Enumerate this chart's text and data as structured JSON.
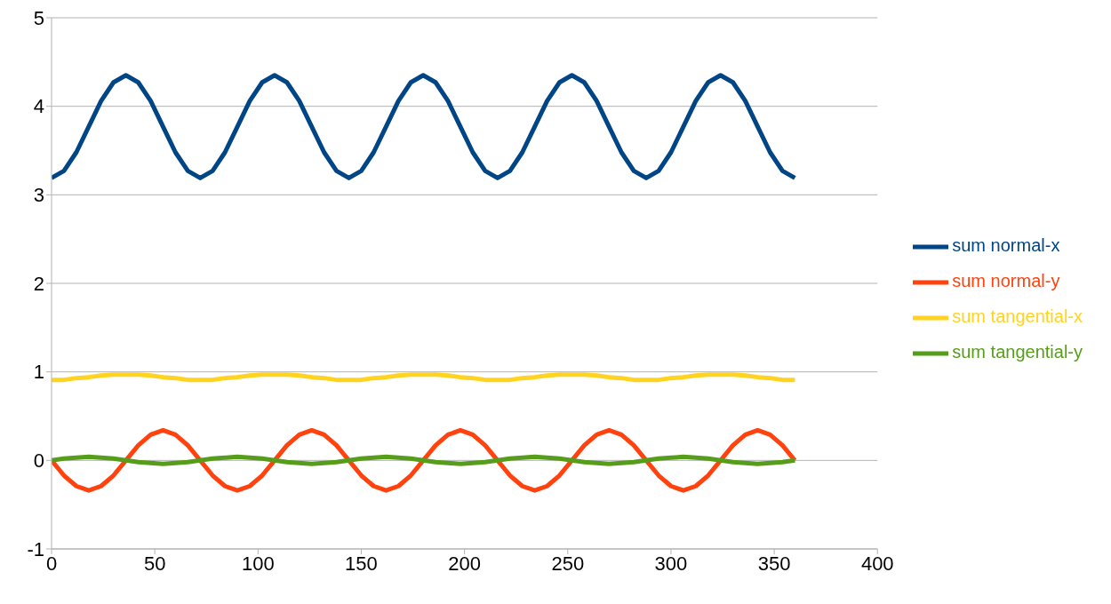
{
  "chart_data": {
    "type": "line",
    "x": [
      0,
      6,
      12,
      18,
      24,
      30,
      36,
      42,
      48,
      54,
      60,
      66,
      72,
      78,
      84,
      90,
      96,
      102,
      108,
      114,
      120,
      126,
      132,
      138,
      144,
      150,
      156,
      162,
      168,
      174,
      180,
      186,
      192,
      198,
      204,
      210,
      216,
      222,
      228,
      234,
      240,
      246,
      252,
      258,
      264,
      270,
      276,
      282,
      288,
      294,
      300,
      306,
      312,
      318,
      324,
      330,
      336,
      342,
      348,
      354,
      360
    ],
    "series": [
      {
        "name": "sum normal-x",
        "color": "#004586",
        "values": [
          3.19,
          3.27,
          3.48,
          3.77,
          4.06,
          4.27,
          4.35,
          4.27,
          4.06,
          3.77,
          3.48,
          3.27,
          3.19,
          3.27,
          3.48,
          3.77,
          4.06,
          4.27,
          4.35,
          4.27,
          4.06,
          3.77,
          3.48,
          3.27,
          3.19,
          3.27,
          3.48,
          3.77,
          4.06,
          4.27,
          4.35,
          4.27,
          4.06,
          3.77,
          3.48,
          3.27,
          3.19,
          3.27,
          3.48,
          3.77,
          4.06,
          4.27,
          4.35,
          4.27,
          4.06,
          3.77,
          3.48,
          3.27,
          3.19,
          3.27,
          3.48,
          3.77,
          4.06,
          4.27,
          4.35,
          4.27,
          4.06,
          3.77,
          3.48,
          3.27,
          3.19
        ]
      },
      {
        "name": "sum normal-y",
        "color": "#ff420e",
        "values": [
          0,
          -0.17,
          -0.29,
          -0.34,
          -0.29,
          -0.17,
          0,
          0.17,
          0.29,
          0.34,
          0.29,
          0.17,
          0,
          -0.17,
          -0.29,
          -0.34,
          -0.29,
          -0.17,
          0,
          0.17,
          0.29,
          0.34,
          0.29,
          0.17,
          0,
          -0.17,
          -0.29,
          -0.34,
          -0.29,
          -0.17,
          0,
          0.17,
          0.29,
          0.34,
          0.29,
          0.17,
          0,
          -0.17,
          -0.29,
          -0.34,
          -0.29,
          -0.17,
          0,
          0.17,
          0.29,
          0.34,
          0.29,
          0.17,
          0,
          -0.17,
          -0.29,
          -0.34,
          -0.29,
          -0.17,
          0,
          0.17,
          0.29,
          0.34,
          0.29,
          0.17,
          0
        ]
      },
      {
        "name": "sum tangential-x",
        "color": "#ffd320",
        "values": [
          0.91,
          0.91,
          0.93,
          0.94,
          0.96,
          0.97,
          0.97,
          0.97,
          0.96,
          0.94,
          0.93,
          0.91,
          0.91,
          0.91,
          0.93,
          0.94,
          0.96,
          0.97,
          0.97,
          0.97,
          0.96,
          0.94,
          0.93,
          0.91,
          0.91,
          0.91,
          0.93,
          0.94,
          0.96,
          0.97,
          0.97,
          0.97,
          0.96,
          0.94,
          0.93,
          0.91,
          0.91,
          0.91,
          0.93,
          0.94,
          0.96,
          0.97,
          0.97,
          0.97,
          0.96,
          0.94,
          0.93,
          0.91,
          0.91,
          0.91,
          0.93,
          0.94,
          0.96,
          0.97,
          0.97,
          0.97,
          0.96,
          0.94,
          0.93,
          0.91,
          0.91
        ]
      },
      {
        "name": "sum tangential-y",
        "color": "#579d1c",
        "values": [
          0,
          0.02,
          0.03,
          0.04,
          0.03,
          0.02,
          0,
          -0.02,
          -0.03,
          -0.04,
          -0.03,
          -0.02,
          0,
          0.02,
          0.03,
          0.04,
          0.03,
          0.02,
          0,
          -0.02,
          -0.03,
          -0.04,
          -0.03,
          -0.02,
          0,
          0.02,
          0.03,
          0.04,
          0.03,
          0.02,
          0,
          -0.02,
          -0.03,
          -0.04,
          -0.03,
          -0.02,
          0,
          0.02,
          0.03,
          0.04,
          0.03,
          0.02,
          0,
          -0.02,
          -0.03,
          -0.04,
          -0.03,
          -0.02,
          0,
          0.02,
          0.03,
          0.04,
          0.03,
          0.02,
          0,
          -0.02,
          -0.03,
          -0.04,
          -0.03,
          -0.02,
          0
        ]
      }
    ],
    "xlim": [
      0,
      400
    ],
    "xticks": [
      0,
      50,
      100,
      150,
      200,
      250,
      300,
      350,
      400
    ],
    "ylim": [
      -1,
      5
    ],
    "yticks": [
      -1,
      0,
      1,
      2,
      3,
      4,
      5
    ],
    "grid": "y",
    "legend": "right",
    "marker": "none",
    "line_style": "solid"
  }
}
